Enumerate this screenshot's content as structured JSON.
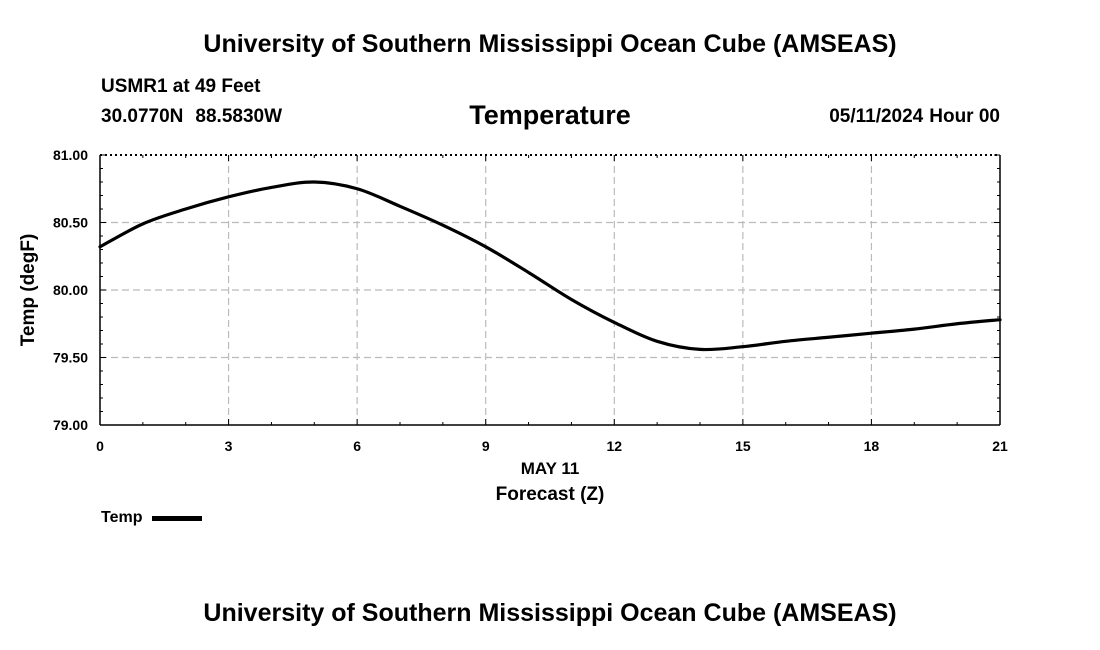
{
  "header": {
    "title": "University of Southern Mississippi Ocean Cube (AMSEAS)",
    "station": "USMR1 at 49 Feet",
    "latitude": "30.0770N",
    "longitude": "88.5830W",
    "variable": "Temperature",
    "date": "05/11/2024",
    "hour": "Hour 00"
  },
  "footer": {
    "title": "University of Southern Mississippi Ocean Cube (AMSEAS)"
  },
  "legend": {
    "label": "Temp",
    "color": "#000000"
  },
  "chart_data": {
    "type": "line",
    "title": "Temperature",
    "xlabel": "Forecast (Z)",
    "xlabel_date": "MAY 11",
    "ylabel": "Temp (degF)",
    "xlim": [
      0,
      21
    ],
    "ylim": [
      79.0,
      81.0
    ],
    "xticks": [
      0,
      3,
      6,
      9,
      12,
      15,
      18,
      21
    ],
    "xtick_labels": [
      "0",
      "3",
      "6",
      "9",
      "12",
      "15",
      "18",
      "21"
    ],
    "yticks": [
      79.0,
      79.5,
      80.0,
      80.5,
      81.0
    ],
    "ytick_labels": [
      "79.00",
      "79.50",
      "80.00",
      "80.50",
      "81.00"
    ],
    "grid": true,
    "series": [
      {
        "name": "Temp",
        "color": "#000000",
        "x": [
          0,
          1,
          2,
          3,
          4,
          5,
          6,
          7,
          8,
          9,
          10,
          11,
          12,
          13,
          14,
          15,
          16,
          17,
          18,
          19,
          20,
          21
        ],
        "values": [
          80.32,
          80.49,
          80.6,
          80.69,
          80.76,
          80.8,
          80.75,
          80.62,
          80.48,
          80.32,
          80.13,
          79.93,
          79.76,
          79.62,
          79.56,
          79.58,
          79.62,
          79.65,
          79.68,
          79.71,
          79.75,
          79.78
        ]
      }
    ]
  }
}
